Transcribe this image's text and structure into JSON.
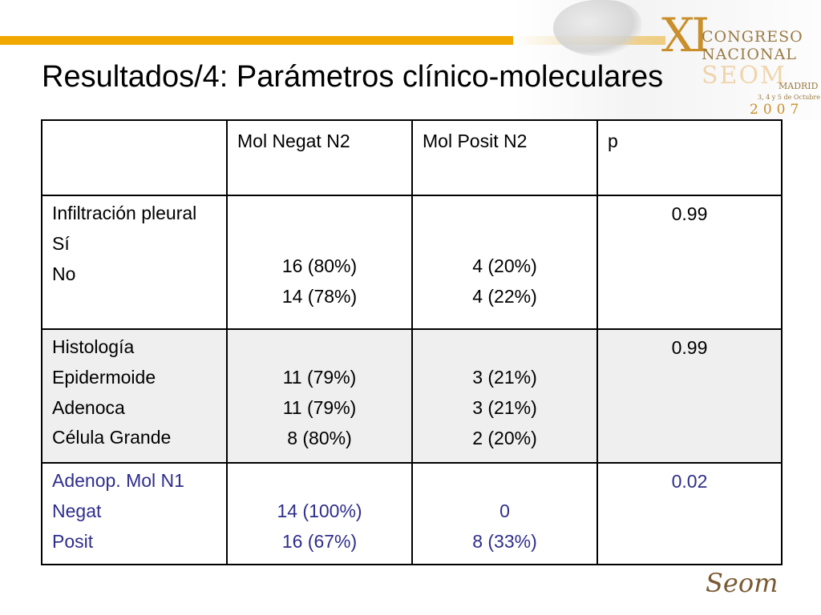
{
  "title": "Resultados/4: Parámetros clínico-moleculares",
  "logo": {
    "xi": "XI",
    "line1": "CONGRESO",
    "line2": "NACIONAL",
    "seom": "SEOM",
    "place": "MADRID",
    "dates": "3, 4 y 5 de Octubre",
    "year": "2007"
  },
  "table": {
    "headers": [
      "",
      "Mol Negat N2",
      "Mol Posit N2",
      "p"
    ],
    "groups": [
      {
        "label_lines": [
          "Infiltración pleural",
          "Sí",
          "No"
        ],
        "neg": [
          "16 (80%)",
          "14 (78%)"
        ],
        "pos": [
          "4 (20%)",
          "4 (22%)"
        ],
        "p": "0.99"
      },
      {
        "label_lines": [
          "Histología",
          "Epidermoide",
          "Adenoca",
          "Célula Grande"
        ],
        "neg": [
          "11 (79%)",
          "11 (79%)",
          "8 (80%)"
        ],
        "pos": [
          "3 (21%)",
          "3 (21%)",
          "2 (20%)"
        ],
        "p": "0.99"
      },
      {
        "label_lines": [
          "Adenop. Mol N1",
          "Negat",
          "Posit"
        ],
        "neg": [
          "14 (100%)",
          "16 (67%)"
        ],
        "pos": [
          "0",
          "8 (33%)"
        ],
        "p": "0.02"
      }
    ]
  },
  "footer_logo": "Seom",
  "colors": {
    "accent_bar": "#f0a800",
    "row_shade": "#efefef",
    "blue_text": "#2e2e8c"
  }
}
